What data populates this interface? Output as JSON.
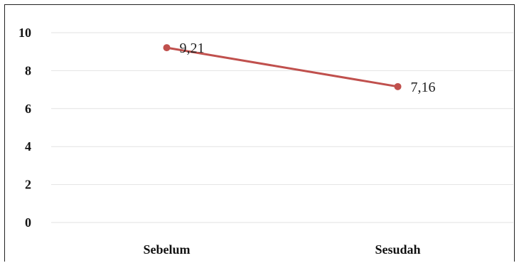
{
  "chart_data": {
    "type": "line",
    "categories": [
      "Sebelum",
      "Sesudah"
    ],
    "series": [
      {
        "values": [
          9.21,
          7.16
        ],
        "data_labels": [
          "9,21",
          "7,16"
        ],
        "color": "#c0504d"
      }
    ],
    "y_ticks": [
      "0",
      "2",
      "4",
      "6",
      "8",
      "10"
    ],
    "ylim": [
      0,
      10
    ],
    "grid": true,
    "legend": "none"
  }
}
